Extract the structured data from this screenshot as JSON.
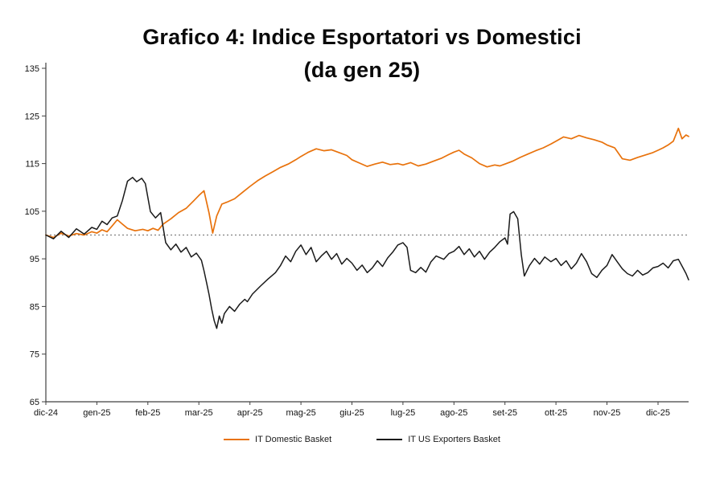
{
  "title": {
    "line1": "Grafico 4: Indice Esportatori vs Domestici",
    "line2": "(da gen 25)"
  },
  "chart_data": {
    "type": "line",
    "title": "Grafico 4: Indice Esportatori vs Domestici (da gen 25)",
    "xlabel": "",
    "ylabel": "",
    "grid": false,
    "legend_position": "bottom",
    "x_tick_labels": [
      "dic-24",
      "gen-25",
      "feb-25",
      "mar-25",
      "apr-25",
      "mag-25",
      "giu-25",
      "lug-25",
      "ago-25",
      "set-25",
      "ott-25",
      "nov-25",
      "dic-25"
    ],
    "y_ticks": [
      65,
      75,
      85,
      95,
      105,
      115,
      125,
      135
    ],
    "y_range": [
      65,
      135
    ],
    "x_range": [
      0,
      12.6
    ],
    "reference_line": {
      "y": 100,
      "style": "dotted",
      "color": "#7f7f7f"
    },
    "axis_color": "#404040",
    "tick_label_color": "#111111",
    "series": [
      {
        "name": "IT Domestic Basket",
        "color": "#e8720c",
        "width": 1.7,
        "points": [
          [
            0,
            100
          ],
          [
            0.15,
            99.5
          ],
          [
            0.3,
            100.4
          ],
          [
            0.45,
            99.8
          ],
          [
            0.6,
            100.3
          ],
          [
            0.75,
            100.0
          ],
          [
            0.9,
            100.7
          ],
          [
            1.0,
            100.4
          ],
          [
            1.1,
            101.1
          ],
          [
            1.2,
            100.7
          ],
          [
            1.3,
            101.9
          ],
          [
            1.4,
            103.2
          ],
          [
            1.5,
            102.3
          ],
          [
            1.6,
            101.4
          ],
          [
            1.75,
            100.9
          ],
          [
            1.9,
            101.2
          ],
          [
            2.0,
            100.9
          ],
          [
            2.1,
            101.4
          ],
          [
            2.2,
            101.0
          ],
          [
            2.3,
            102.3
          ],
          [
            2.45,
            103.4
          ],
          [
            2.6,
            104.7
          ],
          [
            2.75,
            105.6
          ],
          [
            2.9,
            107.2
          ],
          [
            3.0,
            108.3
          ],
          [
            3.1,
            109.3
          ],
          [
            3.2,
            104.6
          ],
          [
            3.27,
            100.4
          ],
          [
            3.35,
            104.0
          ],
          [
            3.45,
            106.5
          ],
          [
            3.55,
            106.9
          ],
          [
            3.7,
            107.6
          ],
          [
            3.85,
            108.9
          ],
          [
            4.0,
            110.2
          ],
          [
            4.15,
            111.4
          ],
          [
            4.3,
            112.4
          ],
          [
            4.45,
            113.3
          ],
          [
            4.6,
            114.2
          ],
          [
            4.75,
            114.9
          ],
          [
            4.9,
            115.8
          ],
          [
            5.0,
            116.5
          ],
          [
            5.15,
            117.4
          ],
          [
            5.3,
            118.1
          ],
          [
            5.45,
            117.7
          ],
          [
            5.6,
            117.9
          ],
          [
            5.75,
            117.3
          ],
          [
            5.9,
            116.7
          ],
          [
            6.0,
            115.8
          ],
          [
            6.15,
            115.1
          ],
          [
            6.3,
            114.4
          ],
          [
            6.45,
            114.9
          ],
          [
            6.6,
            115.3
          ],
          [
            6.75,
            114.8
          ],
          [
            6.9,
            115.0
          ],
          [
            7.0,
            114.7
          ],
          [
            7.15,
            115.2
          ],
          [
            7.3,
            114.5
          ],
          [
            7.45,
            114.9
          ],
          [
            7.6,
            115.5
          ],
          [
            7.75,
            116.1
          ],
          [
            7.9,
            116.9
          ],
          [
            8.0,
            117.4
          ],
          [
            8.1,
            117.8
          ],
          [
            8.2,
            117.0
          ],
          [
            8.35,
            116.2
          ],
          [
            8.5,
            115.0
          ],
          [
            8.65,
            114.3
          ],
          [
            8.8,
            114.7
          ],
          [
            8.9,
            114.5
          ],
          [
            9.0,
            114.9
          ],
          [
            9.15,
            115.5
          ],
          [
            9.3,
            116.3
          ],
          [
            9.45,
            117.0
          ],
          [
            9.6,
            117.7
          ],
          [
            9.75,
            118.3
          ],
          [
            9.9,
            119.1
          ],
          [
            10.0,
            119.7
          ],
          [
            10.15,
            120.6
          ],
          [
            10.3,
            120.2
          ],
          [
            10.45,
            120.9
          ],
          [
            10.6,
            120.4
          ],
          [
            10.75,
            120.0
          ],
          [
            10.9,
            119.5
          ],
          [
            11.0,
            118.9
          ],
          [
            11.15,
            118.3
          ],
          [
            11.3,
            116.0
          ],
          [
            11.45,
            115.7
          ],
          [
            11.6,
            116.3
          ],
          [
            11.75,
            116.8
          ],
          [
            11.9,
            117.3
          ],
          [
            12.0,
            117.8
          ],
          [
            12.1,
            118.3
          ],
          [
            12.2,
            118.9
          ],
          [
            12.3,
            119.7
          ],
          [
            12.4,
            122.4
          ],
          [
            12.47,
            120.2
          ],
          [
            12.55,
            121.0
          ],
          [
            12.6,
            120.7
          ]
        ]
      },
      {
        "name": "IT US Exporters Basket",
        "color": "#1a1a1a",
        "width": 1.5,
        "points": [
          [
            0,
            100
          ],
          [
            0.15,
            99.2
          ],
          [
            0.3,
            100.8
          ],
          [
            0.45,
            99.5
          ],
          [
            0.6,
            101.3
          ],
          [
            0.75,
            100.2
          ],
          [
            0.9,
            101.6
          ],
          [
            1.0,
            101.2
          ],
          [
            1.1,
            102.9
          ],
          [
            1.2,
            102.2
          ],
          [
            1.3,
            103.6
          ],
          [
            1.4,
            104.0
          ],
          [
            1.5,
            107.2
          ],
          [
            1.6,
            111.3
          ],
          [
            1.7,
            112.1
          ],
          [
            1.78,
            111.2
          ],
          [
            1.88,
            111.9
          ],
          [
            1.95,
            110.8
          ],
          [
            2.05,
            104.9
          ],
          [
            2.15,
            103.6
          ],
          [
            2.25,
            104.7
          ],
          [
            2.35,
            98.4
          ],
          [
            2.45,
            96.9
          ],
          [
            2.55,
            98.1
          ],
          [
            2.65,
            96.4
          ],
          [
            2.75,
            97.4
          ],
          [
            2.85,
            95.4
          ],
          [
            2.95,
            96.2
          ],
          [
            3.05,
            94.7
          ],
          [
            3.1,
            92.5
          ],
          [
            3.15,
            90.0
          ],
          [
            3.2,
            87.5
          ],
          [
            3.25,
            84.5
          ],
          [
            3.3,
            82.0
          ],
          [
            3.35,
            80.4
          ],
          [
            3.4,
            83.0
          ],
          [
            3.45,
            81.5
          ],
          [
            3.5,
            83.5
          ],
          [
            3.6,
            85.0
          ],
          [
            3.7,
            84.0
          ],
          [
            3.8,
            85.5
          ],
          [
            3.9,
            86.5
          ],
          [
            3.95,
            86.0
          ],
          [
            4.05,
            87.6
          ],
          [
            4.2,
            89.2
          ],
          [
            4.35,
            90.7
          ],
          [
            4.5,
            92.1
          ],
          [
            4.6,
            93.6
          ],
          [
            4.7,
            95.6
          ],
          [
            4.8,
            94.4
          ],
          [
            4.9,
            96.6
          ],
          [
            5.0,
            97.9
          ],
          [
            5.1,
            95.9
          ],
          [
            5.2,
            97.4
          ],
          [
            5.3,
            94.4
          ],
          [
            5.4,
            95.6
          ],
          [
            5.5,
            96.6
          ],
          [
            5.6,
            94.9
          ],
          [
            5.7,
            96.1
          ],
          [
            5.8,
            93.9
          ],
          [
            5.9,
            95.1
          ],
          [
            6.0,
            94.1
          ],
          [
            6.1,
            92.6
          ],
          [
            6.2,
            93.7
          ],
          [
            6.3,
            92.1
          ],
          [
            6.4,
            93.1
          ],
          [
            6.5,
            94.6
          ],
          [
            6.6,
            93.4
          ],
          [
            6.7,
            95.2
          ],
          [
            6.8,
            96.4
          ],
          [
            6.9,
            97.9
          ],
          [
            7.0,
            98.4
          ],
          [
            7.08,
            97.4
          ],
          [
            7.15,
            92.6
          ],
          [
            7.25,
            92.1
          ],
          [
            7.35,
            93.2
          ],
          [
            7.45,
            92.2
          ],
          [
            7.55,
            94.4
          ],
          [
            7.65,
            95.6
          ],
          [
            7.8,
            94.9
          ],
          [
            7.9,
            96.1
          ],
          [
            8.0,
            96.6
          ],
          [
            8.1,
            97.6
          ],
          [
            8.2,
            95.9
          ],
          [
            8.3,
            97.1
          ],
          [
            8.4,
            95.4
          ],
          [
            8.5,
            96.6
          ],
          [
            8.6,
            94.9
          ],
          [
            8.7,
            96.4
          ],
          [
            8.8,
            97.4
          ],
          [
            8.9,
            98.6
          ],
          [
            9.0,
            99.4
          ],
          [
            9.05,
            98.1
          ],
          [
            9.1,
            104.4
          ],
          [
            9.17,
            104.9
          ],
          [
            9.25,
            103.4
          ],
          [
            9.32,
            95.9
          ],
          [
            9.38,
            91.4
          ],
          [
            9.48,
            93.6
          ],
          [
            9.58,
            95.1
          ],
          [
            9.68,
            93.9
          ],
          [
            9.78,
            95.4
          ],
          [
            9.9,
            94.4
          ],
          [
            10.0,
            95.1
          ],
          [
            10.1,
            93.6
          ],
          [
            10.2,
            94.6
          ],
          [
            10.3,
            92.9
          ],
          [
            10.4,
            94.1
          ],
          [
            10.5,
            96.1
          ],
          [
            10.6,
            94.4
          ],
          [
            10.7,
            91.9
          ],
          [
            10.8,
            91.1
          ],
          [
            10.9,
            92.6
          ],
          [
            11.0,
            93.6
          ],
          [
            11.1,
            95.9
          ],
          [
            11.2,
            94.4
          ],
          [
            11.3,
            92.9
          ],
          [
            11.4,
            91.9
          ],
          [
            11.5,
            91.4
          ],
          [
            11.6,
            92.6
          ],
          [
            11.7,
            91.6
          ],
          [
            11.8,
            92.1
          ],
          [
            11.9,
            93.1
          ],
          [
            12.0,
            93.4
          ],
          [
            12.1,
            94.1
          ],
          [
            12.2,
            93.1
          ],
          [
            12.3,
            94.6
          ],
          [
            12.4,
            94.9
          ],
          [
            12.5,
            92.9
          ],
          [
            12.55,
            91.9
          ],
          [
            12.6,
            90.6
          ]
        ]
      }
    ]
  }
}
